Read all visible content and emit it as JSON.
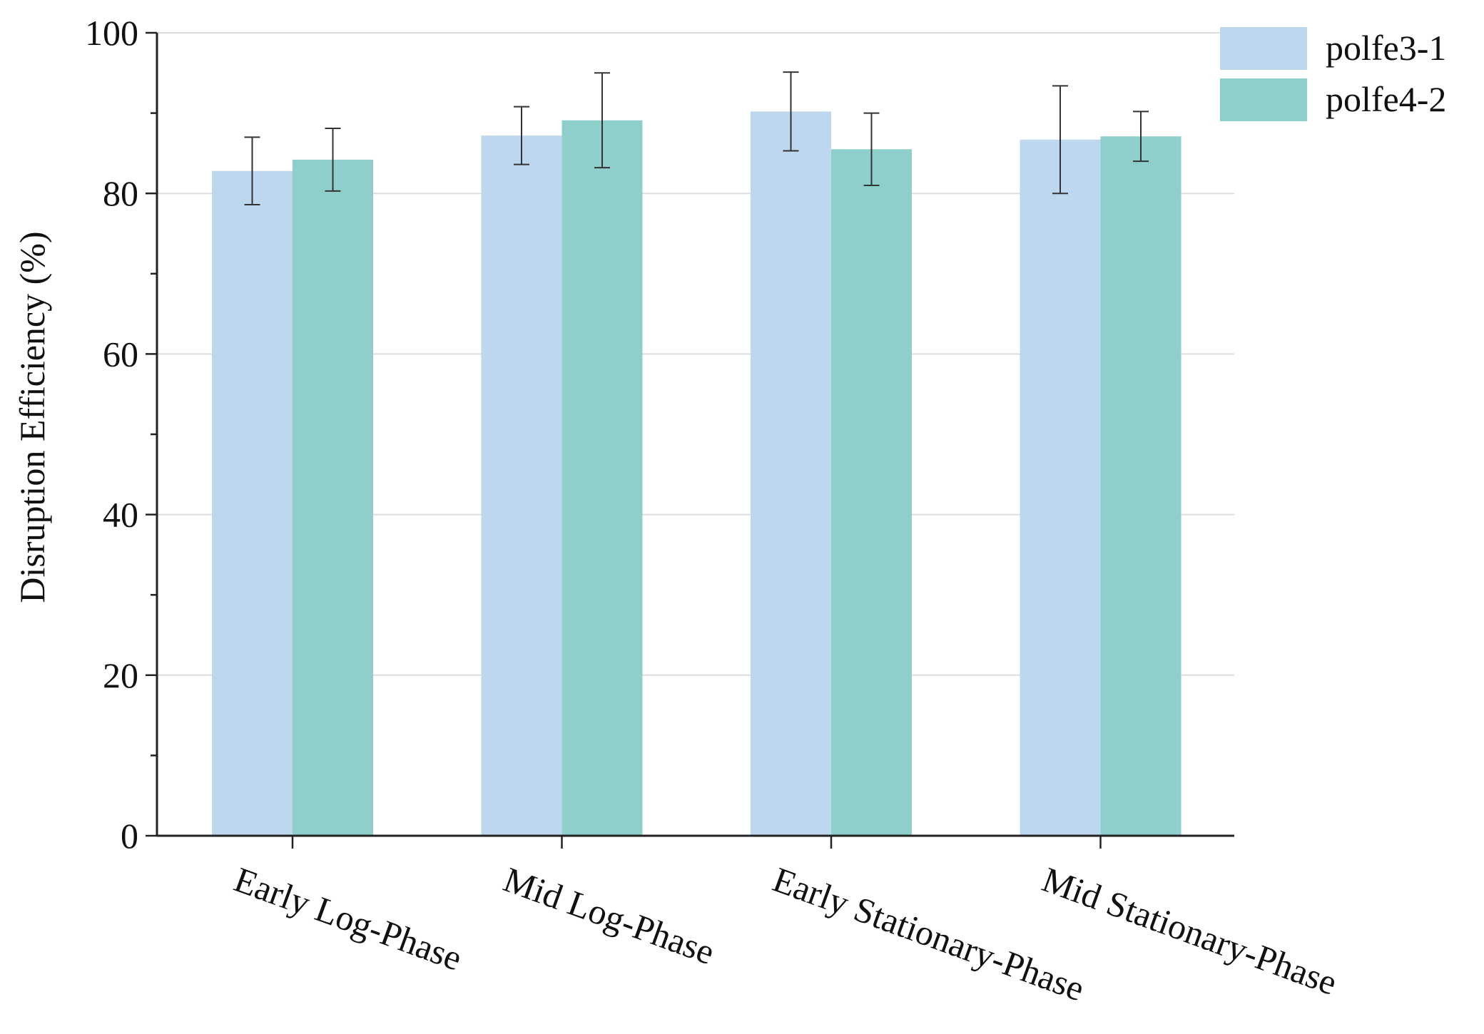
{
  "chart_data": {
    "type": "bar",
    "ylabel": "Disruption Efficiency (%)",
    "ylim": [
      0,
      100
    ],
    "yticks": [
      0,
      20,
      40,
      60,
      80,
      100
    ],
    "grid": "horizontal",
    "legend_position": "top-right",
    "categories": [
      "Early Log-Phase",
      "Mid Log-Phase",
      "Early Stationary-Phase",
      "Mid Stationary-Phase"
    ],
    "series": [
      {
        "name": "polfe3-1",
        "color": "#bdd7ee",
        "values": [
          82.8,
          87.2,
          90.2,
          86.7
        ],
        "errors": [
          4.2,
          3.6,
          4.9,
          6.7
        ]
      },
      {
        "name": "polfe4-2",
        "color": "#8ecfcc",
        "values": [
          84.2,
          89.1,
          85.5,
          87.1
        ],
        "errors": [
          3.9,
          5.9,
          4.5,
          3.1
        ]
      }
    ]
  }
}
